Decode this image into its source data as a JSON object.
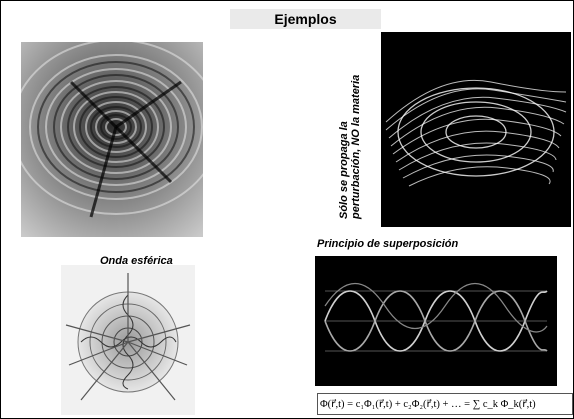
{
  "title": "Ejemplos",
  "vertical_caption_line1": "Sólo se propaga la",
  "vertical_caption_line2": "perturbación, NO la materia",
  "caption_superposition": "Principio de superposición",
  "caption_spherical": "Onda esférica",
  "formula": "Φ(r⃗,t) = c₁Φ₁(r⃗,t) + c₂Φ₂(r⃗,t) + … = ∑ c_k Φ_k(r⃗,t)",
  "images": {
    "water_ripples": "water-ripples-photo",
    "wave_mesh": "wave-surface-mesh",
    "spherical_wave": "spherical-wave-illustration",
    "superposition_plot": "superposition-sine-waves"
  }
}
